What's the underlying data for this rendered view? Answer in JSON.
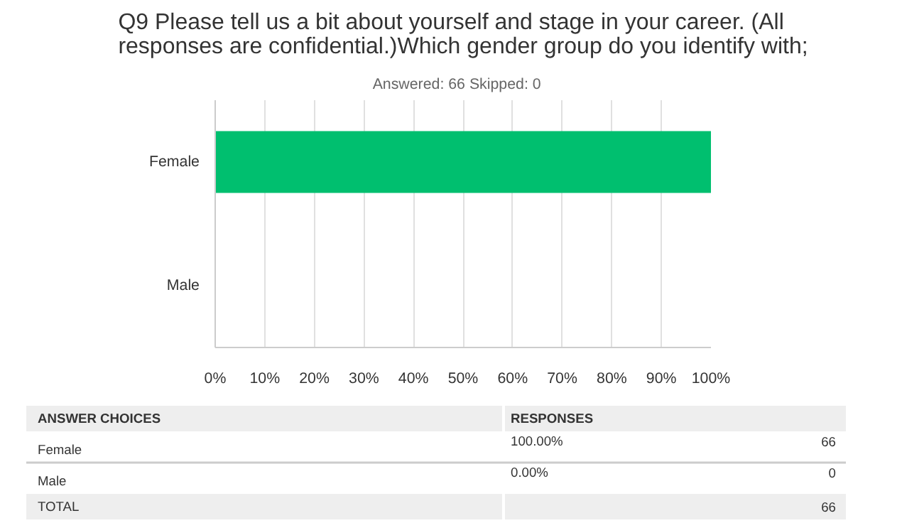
{
  "chart_data": {
    "type": "bar",
    "orientation": "horizontal",
    "title": "Q9 Please tell us a bit about yourself and stage in your career. (All responses are confidential.)Which gender group do you identify with;",
    "subtitle": "Answered: 66    Skipped: 0",
    "categories": [
      "Female",
      "Male"
    ],
    "values": [
      100,
      0
    ],
    "color": "#00bf6f",
    "xlim": [
      0,
      100
    ],
    "xticks": [
      {
        "value": 0,
        "label": "0%"
      },
      {
        "value": 10,
        "label": "10%"
      },
      {
        "value": 20,
        "label": "20%"
      },
      {
        "value": 30,
        "label": "30%"
      },
      {
        "value": 40,
        "label": "40%"
      },
      {
        "value": 50,
        "label": "50%"
      },
      {
        "value": 60,
        "label": "60%"
      },
      {
        "value": 70,
        "label": "70%"
      },
      {
        "value": 80,
        "label": "80%"
      },
      {
        "value": 90,
        "label": "90%"
      },
      {
        "value": 100,
        "label": "100%"
      }
    ],
    "grid": "x",
    "annotations": [
      "ANSWER CHOICES",
      "RESPONSES",
      "100.00%",
      "66",
      "0.00%",
      "0",
      "TOTAL",
      "66"
    ]
  }
}
